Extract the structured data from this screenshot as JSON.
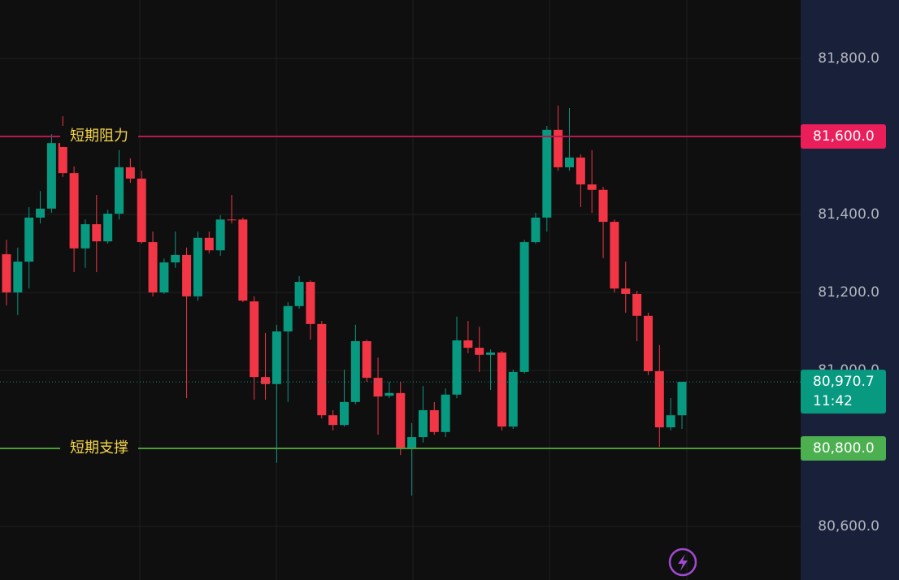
{
  "chart_data": {
    "type": "candlestick",
    "up_color": "#089981",
    "down_color": "#f23645",
    "ylim": [
      80462.5,
      81950
    ],
    "yticks": [
      {
        "value": 80600,
        "label": "80,600.0"
      },
      {
        "value": 80800,
        "label": "80,800.0"
      },
      {
        "value": 81000,
        "label": "81,000.0"
      },
      {
        "value": 81200,
        "label": "81,200.0"
      },
      {
        "value": 81400,
        "label": "81,400.0"
      },
      {
        "value": 81600,
        "label": "81,600.0"
      },
      {
        "value": 81800,
        "label": "81,800.0"
      }
    ],
    "grid": true,
    "open": [
      81298,
      81200,
      81279,
      81392,
      81415,
      81583,
      81506,
      81313,
      81375,
      81331,
      81402,
      81521,
      81492,
      81329,
      81200,
      81277,
      81296,
      81190,
      81340,
      81308,
      81387,
      81387,
      81177,
      80983,
      80965,
      81100,
      81165,
      81227,
      81119,
      80885,
      80860,
      80919,
      81075,
      80981,
      80935,
      80942,
      80798,
      80829,
      80898,
      80842,
      80938,
      81077,
      81058,
      81040,
      81046,
      80856,
      80996,
      81329,
      81392,
      81617,
      81521,
      81546,
      81477,
      81463,
      81381,
      81210,
      81196,
      81140,
      80998,
      80854,
      80885
    ],
    "high": [
      81335,
      81315,
      81419,
      81460,
      81606,
      81652,
      81523,
      81387,
      81450,
      81412,
      81565,
      81544,
      81512,
      81356,
      81287,
      81356,
      81315,
      81356,
      81356,
      81398,
      81450,
      81392,
      81190,
      81096,
      81117,
      81175,
      81242,
      81231,
      81127,
      80898,
      81002,
      81117,
      81079,
      81033,
      80971,
      80971,
      80865,
      80960,
      80919,
      80954,
      81138,
      81127,
      81112,
      81054,
      81050,
      81002,
      81335,
      81404,
      81627,
      81679,
      81673,
      81554,
      81565,
      81471,
      81387,
      81279,
      81204,
      81148,
      81065,
      80929,
      80971
    ],
    "low": [
      81167,
      81142,
      81210,
      81377,
      81404,
      81496,
      81252,
      81263,
      81252,
      81325,
      81387,
      81481,
      81325,
      81190,
      81196,
      81263,
      80929,
      81179,
      81300,
      81294,
      81377,
      81175,
      80925,
      80925,
      80763,
      80919,
      81158,
      81079,
      80877,
      80846,
      80856,
      80913,
      80971,
      80835,
      80929,
      80783,
      80679,
      80815,
      80835,
      80829,
      80929,
      81044,
      80996,
      80950,
      80846,
      80850,
      80992,
      81325,
      81356,
      81512,
      81512,
      81419,
      81404,
      81288,
      81200,
      81148,
      81075,
      80988,
      80804,
      80846,
      80850
    ],
    "close": [
      81200,
      81279,
      81392,
      81415,
      81583,
      81506,
      81313,
      81375,
      81331,
      81402,
      81521,
      81492,
      81329,
      81200,
      81277,
      81296,
      81190,
      81340,
      81308,
      81387,
      81385,
      81179,
      80983,
      80965,
      81100,
      81165,
      81227,
      81119,
      80885,
      80860,
      80919,
      81075,
      80981,
      80933,
      80942,
      80800,
      80829,
      80898,
      80842,
      80938,
      81077,
      81058,
      81040,
      81046,
      80856,
      80996,
      81329,
      81392,
      81617,
      81521,
      81546,
      81477,
      81463,
      81381,
      81210,
      81196,
      81140,
      80998,
      80854,
      80885,
      80970.7
    ],
    "levels": [
      {
        "label": "短期阻力",
        "value": 81600,
        "tag": "81,600.0",
        "color": "#b8184f",
        "tag_color": "#e91e5a"
      },
      {
        "label": "短期支撑",
        "value": 80800,
        "tag": "80,800.0",
        "color": "#4c9a3c",
        "tag_color": "#4caf50"
      }
    ],
    "last_price": {
      "value": 80970.7,
      "label": "80,970.7",
      "countdown": "11:42",
      "color": "#089981"
    }
  }
}
